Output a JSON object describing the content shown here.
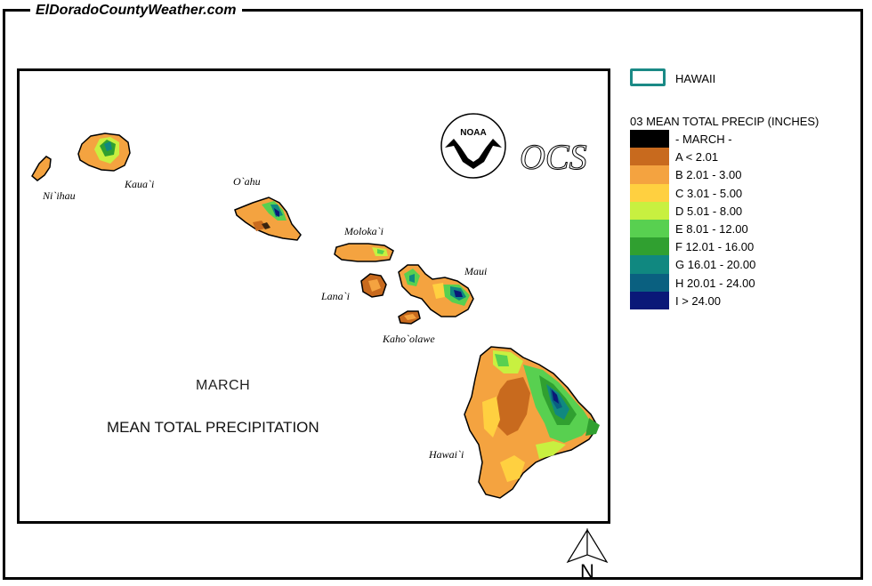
{
  "site": {
    "title": "ElDoradoCountyWeather.com"
  },
  "map": {
    "month_label": "MARCH",
    "title": "MEAN TOTAL PRECIPITATION",
    "islands": [
      {
        "id": "niihau",
        "label": "Ni`ihau"
      },
      {
        "id": "kauai",
        "label": "Kaua`i"
      },
      {
        "id": "oahu",
        "label": "O`ahu"
      },
      {
        "id": "molokai",
        "label": "Moloka`i"
      },
      {
        "id": "lanai",
        "label": "Lana`i"
      },
      {
        "id": "maui",
        "label": "Maui"
      },
      {
        "id": "kahoolawe",
        "label": "Kaho`olawe"
      },
      {
        "id": "hawaii",
        "label": "Hawai`i"
      }
    ],
    "logos": {
      "noaa": "NOAA",
      "ocs": "OCS"
    },
    "north_label": "N"
  },
  "legend": {
    "region_label": "HAWAII",
    "title": "03 MEAN TOTAL PRECIP (INCHES)",
    "items": [
      {
        "label": "- MARCH -",
        "color": "#000000"
      },
      {
        "label": "A < 2.01",
        "color": "#c86a1e"
      },
      {
        "label": "B 2.01 - 3.00",
        "color": "#f4a340"
      },
      {
        "label": "C 3.01 - 5.00",
        "color": "#ffd040"
      },
      {
        "label": "D 5.01 - 8.00",
        "color": "#c8f040"
      },
      {
        "label": "E 8.01 - 12.00",
        "color": "#58d050"
      },
      {
        "label": "F 12.01 - 16.00",
        "color": "#30a030"
      },
      {
        "label": "G 16.01 - 20.00",
        "color": "#108880"
      },
      {
        "label": "H 20.01 - 24.00",
        "color": "#0a6080"
      },
      {
        "label": "I > 24.00",
        "color": "#0a1878"
      }
    ]
  }
}
